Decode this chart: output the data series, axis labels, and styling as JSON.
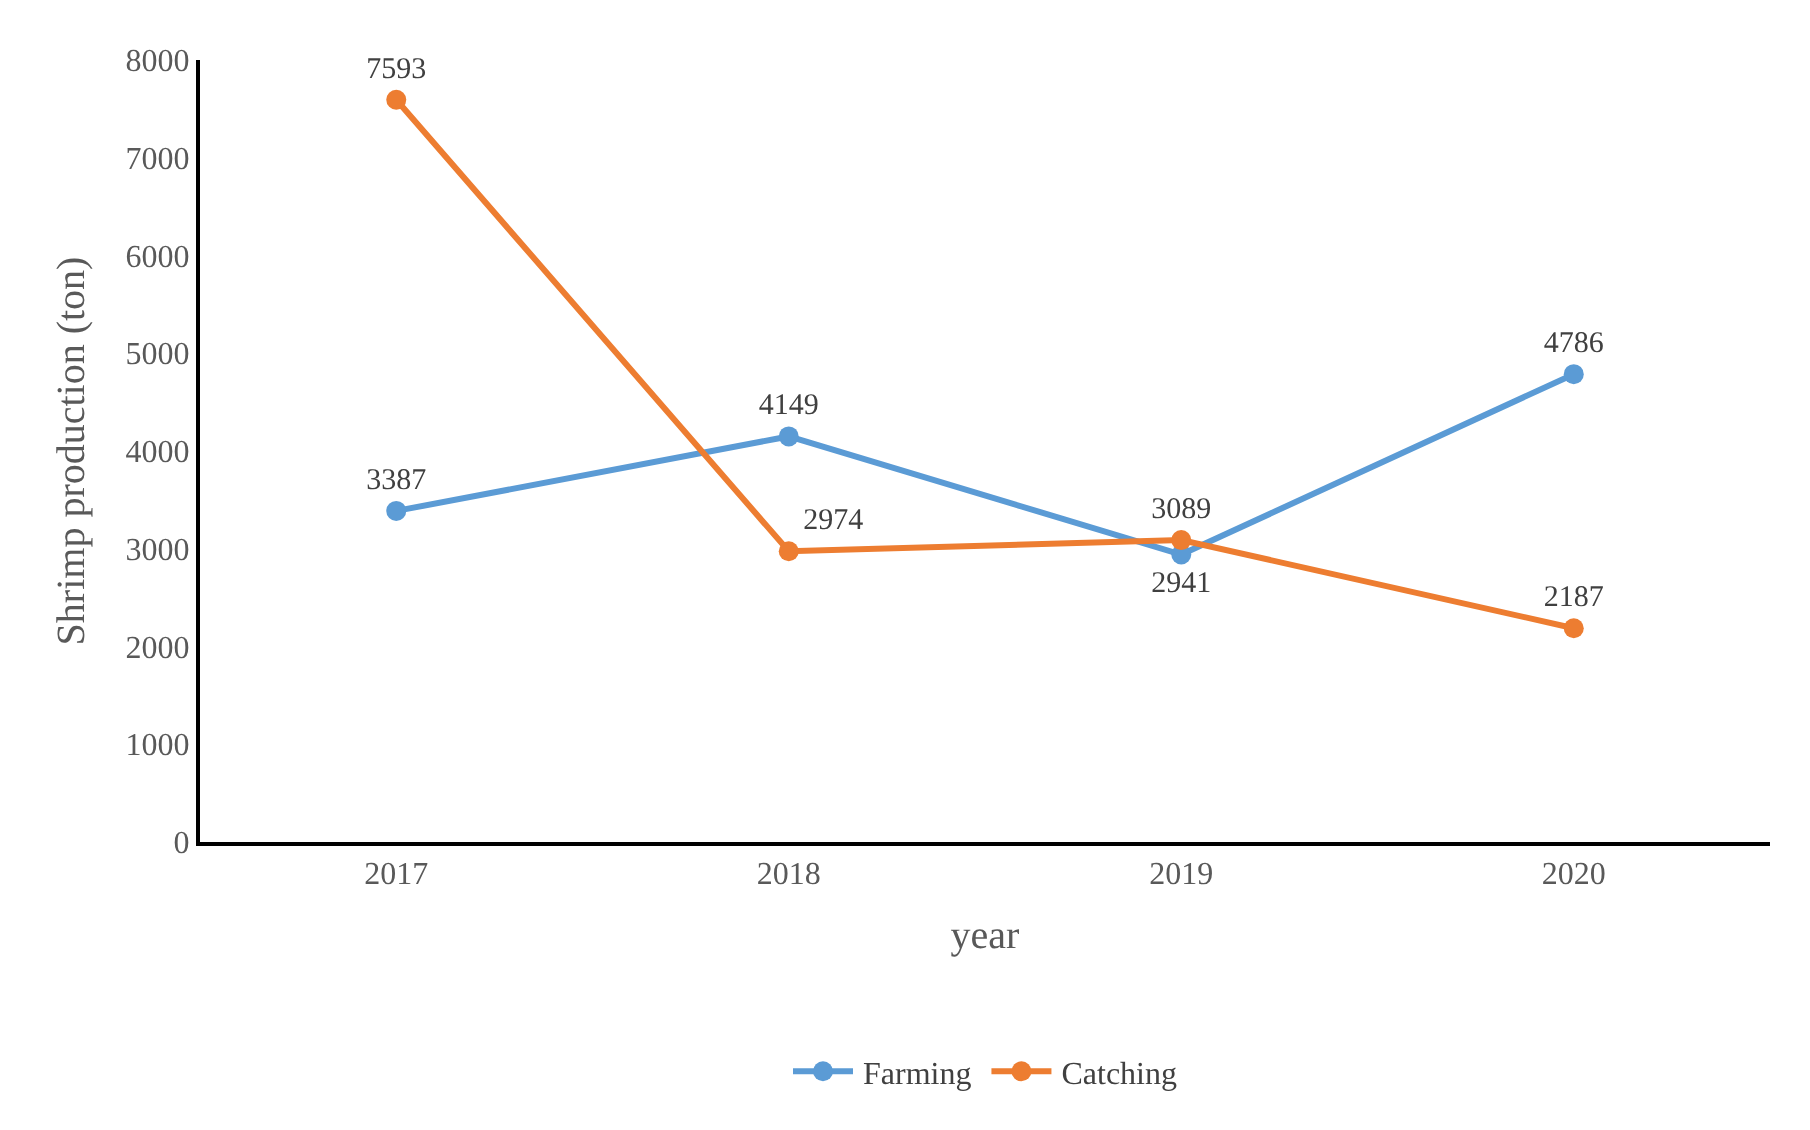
{
  "chart_data": {
    "type": "line",
    "xlabel": "year",
    "ylabel": "Shrimp production (ton)",
    "categories": [
      "2017",
      "2018",
      "2019",
      "2020"
    ],
    "series": [
      {
        "name": "Farming",
        "color": "#5b9bd5",
        "values": [
          3387,
          4149,
          2941,
          4786
        ]
      },
      {
        "name": "Catching",
        "color": "#ed7d31",
        "values": [
          7593,
          2974,
          3089,
          2187
        ]
      }
    ],
    "ylim": [
      0,
      8000
    ],
    "yticks": [
      0,
      1000,
      2000,
      3000,
      4000,
      5000,
      6000,
      7000,
      8000
    ],
    "legend": "bottom",
    "marker": "circle",
    "line_style": "solid",
    "data_labels": true
  }
}
